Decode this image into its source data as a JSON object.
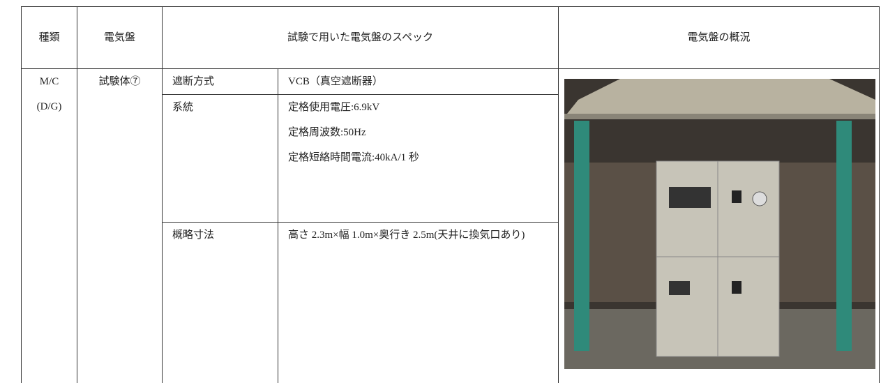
{
  "table": {
    "header": [
      "種類",
      "電気盤",
      "試験で用いた電気盤のスペック",
      "電気盤の概況"
    ],
    "type": [
      "M/C",
      "(D/G)"
    ],
    "panel": "試験体⑦",
    "specs": [
      {
        "item": "遮断方式",
        "details": [
          "VCB（真空遮断器）"
        ]
      },
      {
        "item": "系統",
        "details": [
          "定格使用電圧:6.9kV",
          "定格周波数:50Hz",
          "定格短絡時間電流:40kA/1 秒"
        ]
      },
      {
        "item": "概略寸法",
        "details": [
          "高さ 2.3m×幅 1.0m×奥行き 2.5m(天井に換気口あり)"
        ]
      }
    ]
  }
}
